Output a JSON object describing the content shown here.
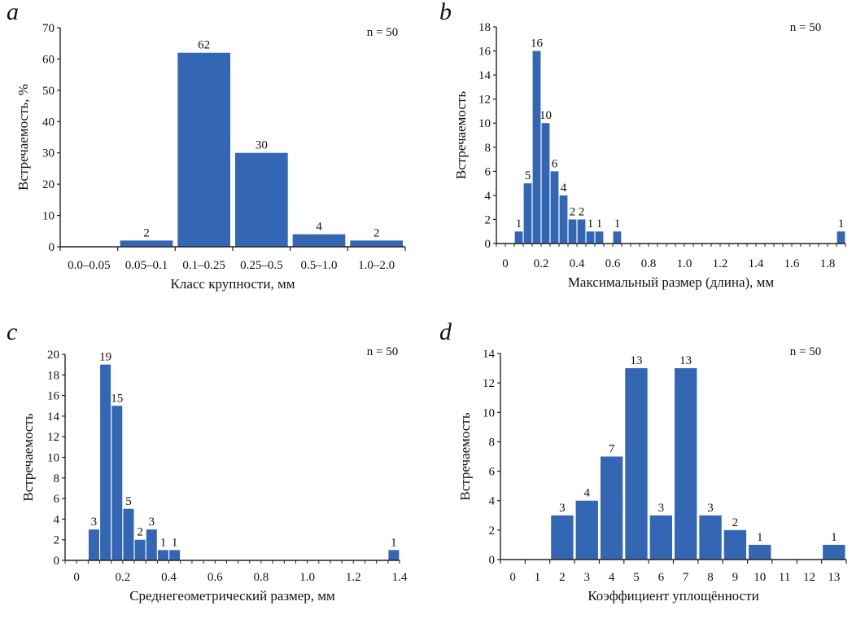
{
  "colors": {
    "bar": "#3366b3",
    "axis": "#222222",
    "text": "#111111"
  },
  "chart_data": [
    {
      "panel": "a",
      "type": "bar",
      "sample_note": "n = 50",
      "xlabel": "Класс крупности, мм",
      "ylabel": "Встречаемость, %",
      "ylim": [
        0,
        70
      ],
      "yticks": [
        0,
        10,
        20,
        30,
        40,
        50,
        60,
        70
      ],
      "categories": [
        "0.0–0.05",
        "0.05–0.1",
        "0.1–0.25",
        "0.25–0.5",
        "0.5–1.0",
        "1.0–2.0"
      ],
      "values": [
        0,
        2,
        62,
        30,
        4,
        2
      ],
      "data_labels": [
        "",
        "2",
        "62",
        "30",
        "4",
        "2"
      ]
    },
    {
      "panel": "b",
      "type": "bar",
      "sample_note": "n = 50",
      "xlabel": "Максимальный размер (длина), мм",
      "ylabel": "Встречаемость",
      "ylim": [
        0,
        18
      ],
      "yticks": [
        0,
        2,
        4,
        6,
        8,
        10,
        12,
        14,
        16,
        18
      ],
      "bin_width": 0.05,
      "xlim": [
        -0.05,
        1.9
      ],
      "xticks": [
        "0",
        "0.2",
        "0.4",
        "0.6",
        "0.8",
        "1.0",
        "1.2",
        "1.4",
        "1.6",
        "1.8"
      ],
      "bins": [
        {
          "from": 0.05,
          "to": 0.1,
          "value": 1
        },
        {
          "from": 0.1,
          "to": 0.15,
          "value": 5
        },
        {
          "from": 0.15,
          "to": 0.2,
          "value": 16
        },
        {
          "from": 0.2,
          "to": 0.25,
          "value": 10
        },
        {
          "from": 0.25,
          "to": 0.3,
          "value": 6
        },
        {
          "from": 0.3,
          "to": 0.35,
          "value": 4
        },
        {
          "from": 0.35,
          "to": 0.4,
          "value": 2
        },
        {
          "from": 0.4,
          "to": 0.45,
          "value": 2
        },
        {
          "from": 0.45,
          "to": 0.5,
          "value": 1
        },
        {
          "from": 0.5,
          "to": 0.55,
          "value": 1
        },
        {
          "from": 0.6,
          "to": 0.65,
          "value": 1
        },
        {
          "from": 1.85,
          "to": 1.9,
          "value": 1
        }
      ]
    },
    {
      "panel": "c",
      "type": "bar",
      "sample_note": "n = 50",
      "xlabel": "Среднегеометрический размер, мм",
      "ylabel": "Встречаемость",
      "ylim": [
        0,
        20
      ],
      "yticks": [
        0,
        2,
        4,
        6,
        8,
        10,
        12,
        14,
        16,
        18,
        20
      ],
      "bin_width": 0.05,
      "xlim": [
        -0.05,
        1.4
      ],
      "xticks": [
        "0",
        "0.2",
        "0.4",
        "0.6",
        "0.8",
        "1.0",
        "1.2",
        "1.4"
      ],
      "bins": [
        {
          "from": 0.05,
          "to": 0.1,
          "value": 3
        },
        {
          "from": 0.1,
          "to": 0.15,
          "value": 19
        },
        {
          "from": 0.15,
          "to": 0.2,
          "value": 15
        },
        {
          "from": 0.2,
          "to": 0.25,
          "value": 5
        },
        {
          "from": 0.25,
          "to": 0.3,
          "value": 2
        },
        {
          "from": 0.3,
          "to": 0.35,
          "value": 3
        },
        {
          "from": 0.35,
          "to": 0.4,
          "value": 1
        },
        {
          "from": 0.4,
          "to": 0.45,
          "value": 1
        },
        {
          "from": 1.35,
          "to": 1.4,
          "value": 1
        }
      ]
    },
    {
      "panel": "d",
      "type": "bar",
      "sample_note": "n = 50",
      "xlabel": "Коэффициент уплощённости",
      "ylabel": "Встречаемость",
      "ylim": [
        0,
        14
      ],
      "yticks": [
        0,
        2,
        4,
        6,
        8,
        10,
        12,
        14
      ],
      "categories": [
        "0",
        "1",
        "2",
        "3",
        "4",
        "5",
        "6",
        "7",
        "8",
        "9",
        "10",
        "11",
        "12",
        "13"
      ],
      "values": [
        0,
        0,
        3,
        4,
        7,
        13,
        3,
        13,
        3,
        2,
        1,
        0,
        0,
        1
      ],
      "data_labels": [
        "",
        "",
        "3",
        "4",
        "7",
        "13",
        "3",
        "13",
        "3",
        "2",
        "1",
        "",
        "",
        "1"
      ]
    }
  ]
}
